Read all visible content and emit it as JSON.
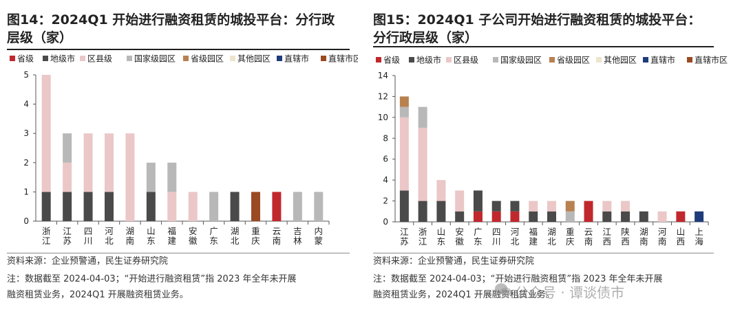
{
  "legend_items": [
    {
      "label": "省级",
      "color": "#c0282d"
    },
    {
      "label": "地级市",
      "color": "#4a4a4a"
    },
    {
      "label": "区县级",
      "color": "#ebc7c7"
    },
    {
      "label": "国家级园区",
      "color": "#b8b8b8"
    },
    {
      "label": "省级园区",
      "color": "#b8814f"
    },
    {
      "label": "其他园区",
      "color": "#eee4cc"
    },
    {
      "label": "直辖市",
      "color": "#1f3c7a"
    },
    {
      "label": "直辖市区",
      "color": "#9a4a22"
    }
  ],
  "panels": [
    {
      "title": "图14：2024Q1 开始进行融资租赁的城投平台：分行政层级（家）",
      "source": "资料来源：企业预警通，民生证券研究院",
      "note_line1": "注：数据截至 2024-04-03；“开始进行融资租赁”指 2023 年全年未开展",
      "note_line2": "融资租赁业务，2024Q1 开展融资租赁业务。"
    },
    {
      "title": "图15：2024Q1 子公司开始进行融资租赁的城投平台：分行政层级（家）",
      "source": "资料来源：企业预警通，民生证券研究院",
      "note_line1": "注：数据截至 2024-04-03；“开始进行融资租赁”指 2023 年全年未开展",
      "note_line2": "融资租赁业务，2024Q1 开展融资租赁业务。"
    }
  ],
  "watermark": "公众号 · 谭谈债市",
  "chart_data": [
    {
      "type": "bar",
      "stacked": true,
      "title": "2024Q1 开始进行融资租赁的城投平台：分行政层级（家）",
      "categories": [
        "浙江",
        "江苏",
        "四川",
        "河北",
        "湖南",
        "山东",
        "福建",
        "安徽",
        "广东",
        "湖北",
        "重庆",
        "云南",
        "吉林",
        "内蒙"
      ],
      "ylim": [
        0,
        5
      ],
      "yticks": [
        0,
        1,
        2,
        3,
        4,
        5
      ],
      "legend_position": "top",
      "grid": false,
      "series": [
        {
          "name": "省级",
          "values": [
            0,
            0,
            0,
            0,
            0,
            0,
            0,
            0,
            0,
            0,
            0,
            1,
            0,
            0
          ]
        },
        {
          "name": "地级市",
          "values": [
            1,
            1,
            1,
            1,
            0,
            1,
            0,
            0,
            0,
            1,
            0,
            0,
            0,
            0
          ]
        },
        {
          "name": "区县级",
          "values": [
            4,
            1,
            2,
            2,
            3,
            0,
            1,
            1,
            0,
            0,
            0,
            0,
            0,
            0
          ]
        },
        {
          "name": "国家级园区",
          "values": [
            0,
            1,
            0,
            0,
            0,
            1,
            1,
            0,
            1,
            0,
            0,
            0,
            1,
            1
          ]
        },
        {
          "name": "省级园区",
          "values": [
            0,
            0,
            0,
            0,
            0,
            0,
            0,
            0,
            0,
            0,
            0,
            0,
            0,
            0
          ]
        },
        {
          "name": "其他园区",
          "values": [
            0,
            0,
            0,
            0,
            0,
            0,
            0,
            0,
            0,
            0,
            0,
            0,
            0,
            0
          ]
        },
        {
          "name": "直辖市",
          "values": [
            0,
            0,
            0,
            0,
            0,
            0,
            0,
            0,
            0,
            0,
            0,
            0,
            0,
            0
          ]
        },
        {
          "name": "直辖市区",
          "values": [
            0,
            0,
            0,
            0,
            0,
            0,
            0,
            0,
            0,
            0,
            1,
            0,
            0,
            0
          ]
        }
      ]
    },
    {
      "type": "bar",
      "stacked": true,
      "title": "2024Q1 子公司开始进行融资租赁的城投平台：分行政层级（家）",
      "categories": [
        "江苏",
        "浙江",
        "山东",
        "安徽",
        "广东",
        "四川",
        "河北",
        "福建",
        "湖北",
        "重庆",
        "云南",
        "江西",
        "陕西",
        "湖南",
        "河南",
        "山西",
        "上海"
      ],
      "ylim": [
        0,
        14
      ],
      "yticks": [
        0,
        2,
        4,
        6,
        8,
        10,
        12,
        14
      ],
      "legend_position": "top",
      "grid": false,
      "series": [
        {
          "name": "省级",
          "values": [
            0,
            0,
            0,
            0,
            1,
            1,
            1,
            0,
            0,
            0,
            2,
            0,
            0,
            0,
            0,
            1,
            0
          ]
        },
        {
          "name": "地级市",
          "values": [
            3,
            2,
            2,
            1,
            2,
            1,
            1,
            1,
            1,
            0,
            0,
            1,
            1,
            1,
            0,
            0,
            0
          ]
        },
        {
          "name": "区县级",
          "values": [
            7,
            7,
            2,
            2,
            0,
            0,
            0,
            1,
            1,
            0,
            0,
            1,
            1,
            0,
            1,
            0,
            0
          ]
        },
        {
          "name": "国家级园区",
          "values": [
            1,
            2,
            0,
            0,
            0,
            0,
            0,
            0,
            0,
            1,
            0,
            0,
            0,
            0,
            0,
            0,
            0
          ]
        },
        {
          "name": "省级园区",
          "values": [
            1,
            0,
            0,
            0,
            0,
            0,
            0,
            0,
            0,
            1,
            0,
            0,
            0,
            0,
            0,
            0,
            0
          ]
        },
        {
          "name": "其他园区",
          "values": [
            0,
            0,
            0,
            0,
            0,
            0,
            0,
            0,
            0,
            0,
            0,
            0,
            0,
            0,
            0,
            0,
            0
          ]
        },
        {
          "name": "直辖市",
          "values": [
            0,
            0,
            0,
            0,
            0,
            0,
            0,
            0,
            0,
            0,
            0,
            0,
            0,
            0,
            0,
            0,
            1
          ]
        },
        {
          "name": "直辖市区",
          "values": [
            0,
            0,
            0,
            0,
            0,
            0,
            0,
            0,
            0,
            0,
            0,
            0,
            0,
            0,
            0,
            0,
            0
          ]
        }
      ]
    }
  ]
}
